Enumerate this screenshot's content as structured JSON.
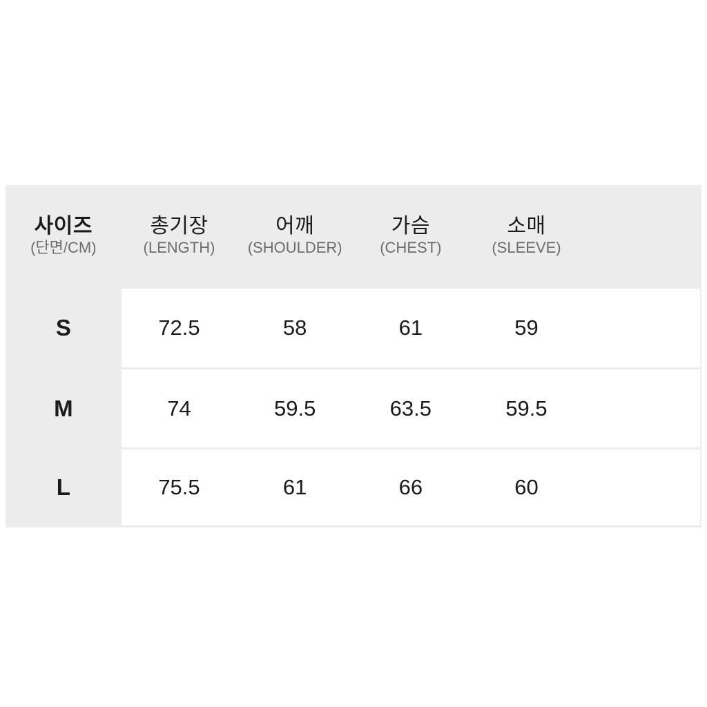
{
  "colors": {
    "page_bg": "#ffffff",
    "panel_bg": "#ececec",
    "row_bg": "#ffffff",
    "text_primary": "#1b1b1b",
    "text_secondary": "#6d6d6d"
  },
  "size_chart": {
    "header": {
      "size_label": "사이즈",
      "size_sublabel": "(단면/CM)",
      "columns": [
        {
          "label": "총기장",
          "sublabel": "(LENGTH)"
        },
        {
          "label": "어깨",
          "sublabel": "(SHOULDER)"
        },
        {
          "label": "가슴",
          "sublabel": "(CHEST)"
        },
        {
          "label": "소매",
          "sublabel": "(SLEEVE)"
        }
      ]
    },
    "rows": [
      {
        "size": "S",
        "values": [
          "72.5",
          "58",
          "61",
          "59"
        ]
      },
      {
        "size": "M",
        "values": [
          "74",
          "59.5",
          "63.5",
          "59.5"
        ]
      },
      {
        "size": "L",
        "values": [
          "75.5",
          "61",
          "66",
          "60"
        ]
      }
    ]
  },
  "chart_data": {
    "type": "table",
    "title": "사이즈 (단면/CM)",
    "columns": [
      "사이즈 (단면/CM)",
      "총기장 (LENGTH)",
      "어깨 (SHOULDER)",
      "가슴 (CHEST)",
      "소매 (SLEEVE)"
    ],
    "rows": [
      [
        "S",
        72.5,
        58,
        61,
        59
      ],
      [
        "M",
        74,
        59.5,
        63.5,
        59.5
      ],
      [
        "L",
        75.5,
        61,
        66,
        60
      ]
    ]
  }
}
